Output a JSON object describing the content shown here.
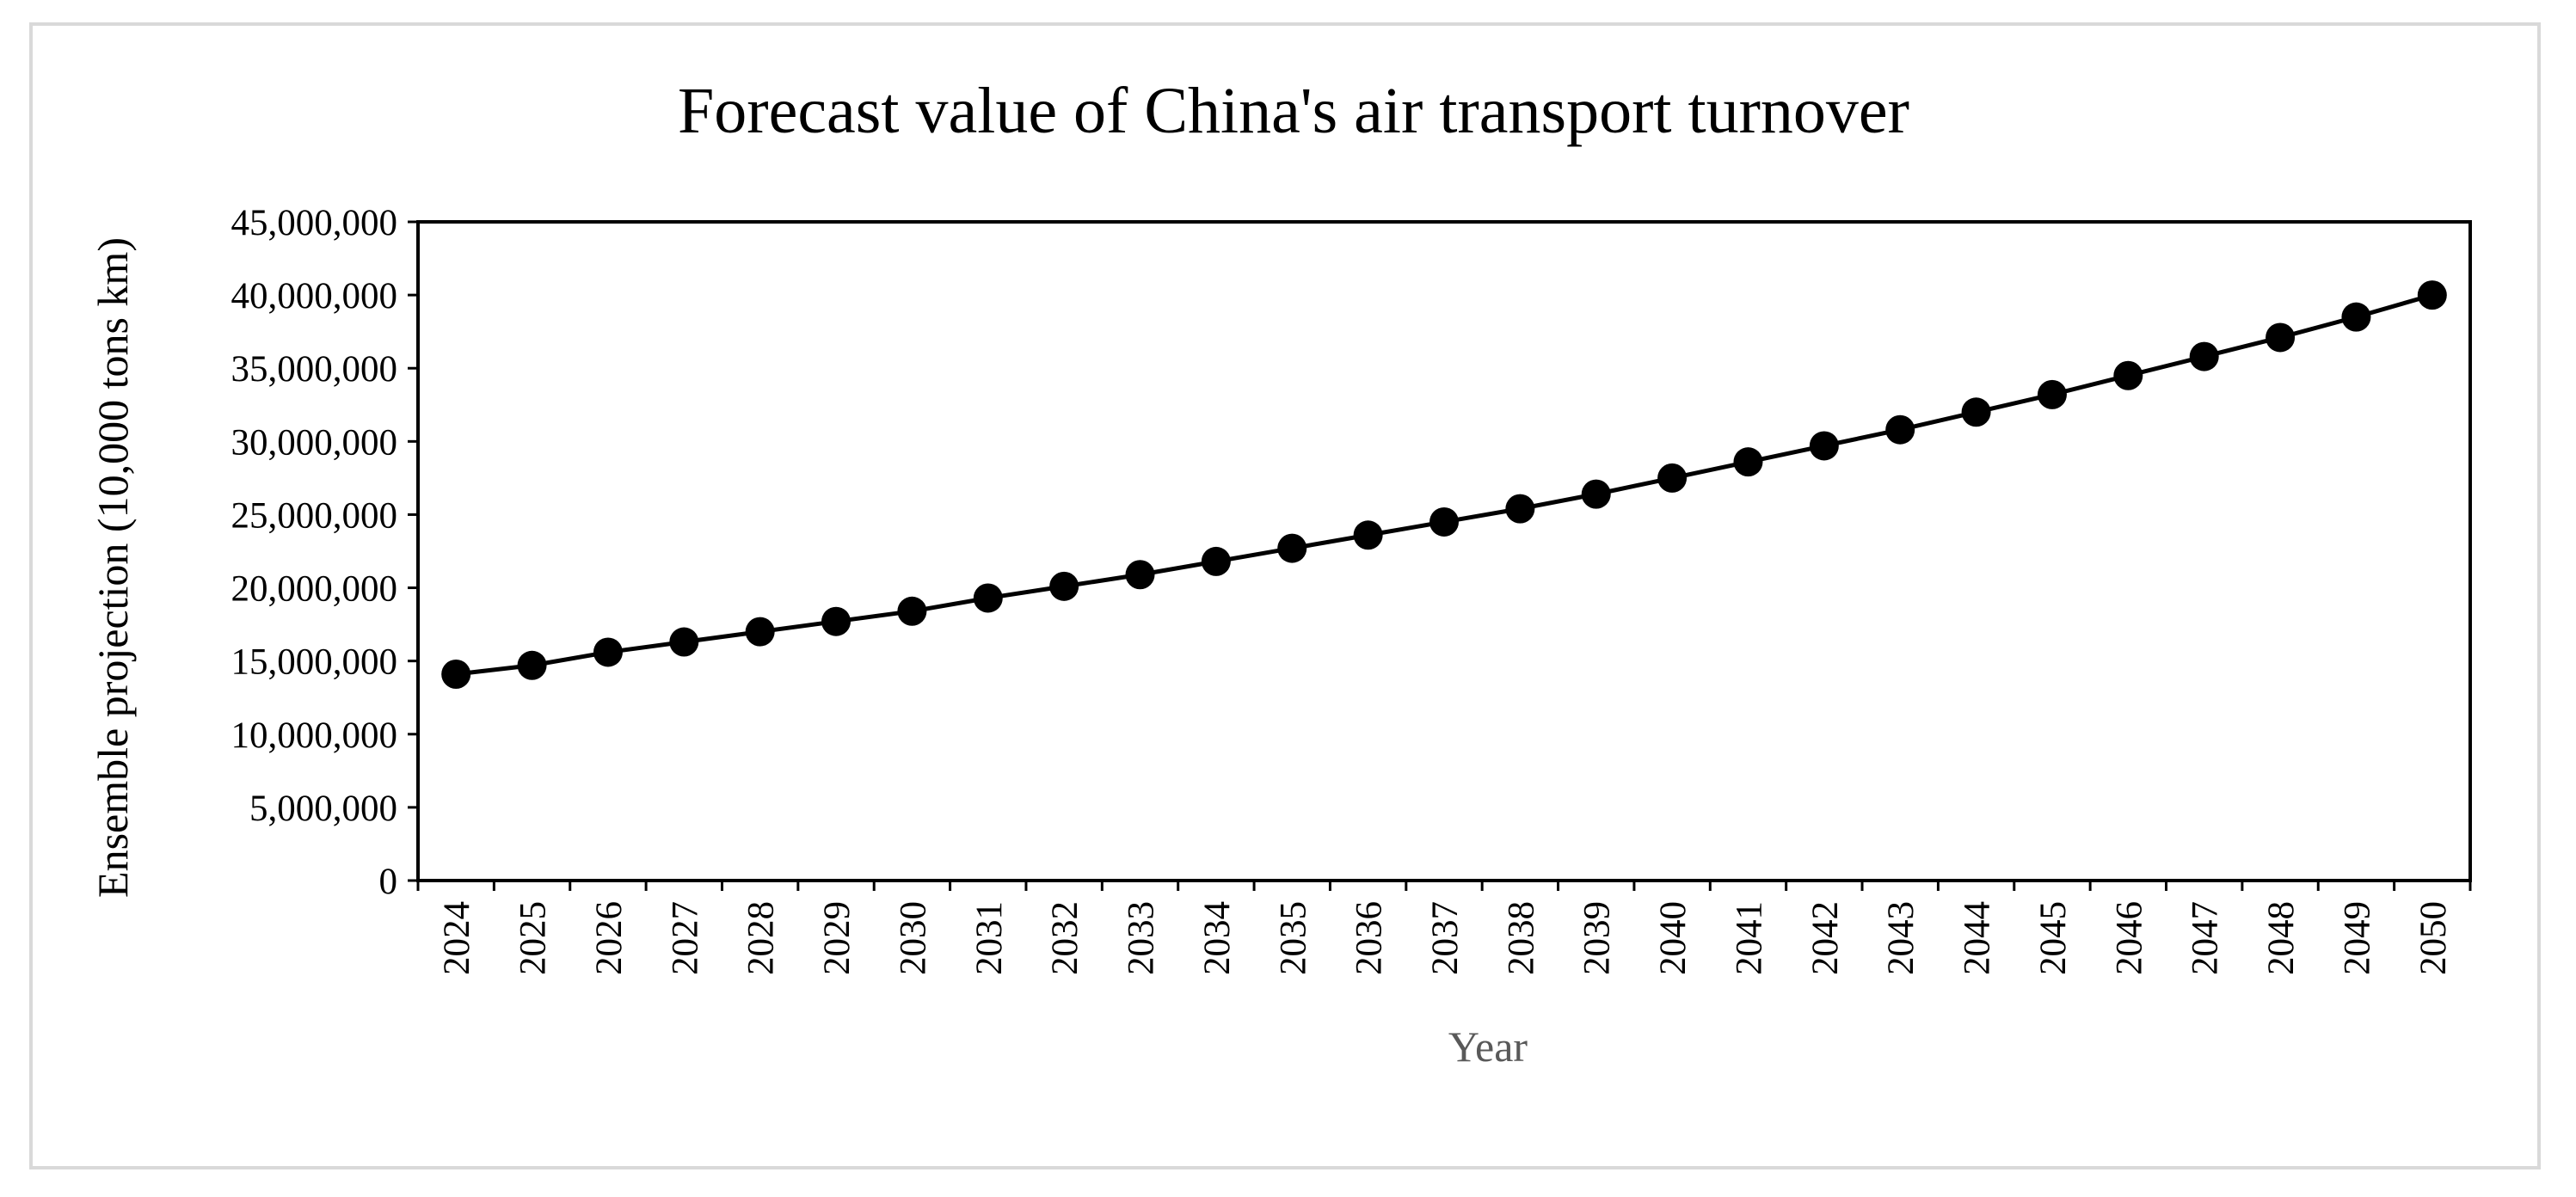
{
  "chart_data": {
    "type": "line",
    "title": "Forecast value of China's air transport turnover",
    "xlabel": "Year",
    "ylabel": "Ensemble projection (10,000 tons km)",
    "categories": [
      "2024",
      "2025",
      "2026",
      "2027",
      "2028",
      "2029",
      "2030",
      "2031",
      "2032",
      "2033",
      "2034",
      "2035",
      "2036",
      "2037",
      "2038",
      "2039",
      "2040",
      "2041",
      "2042",
      "2043",
      "2044",
      "2045",
      "2046",
      "2047",
      "2048",
      "2049",
      "2050"
    ],
    "series": [
      {
        "values": [
          14100000,
          14700000,
          15600000,
          16300000,
          17000000,
          17700000,
          18400000,
          19300000,
          20100000,
          20900000,
          21800000,
          22700000,
          23600000,
          24500000,
          25400000,
          26400000,
          27500000,
          28600000,
          29700000,
          30800000,
          32000000,
          33200000,
          34500000,
          35800000,
          37100000,
          38500000,
          40000000
        ],
        "color": "#000000",
        "marker": "circle"
      }
    ],
    "ylim": [
      0,
      45000000
    ],
    "yticks": [
      "0",
      "5,000,000",
      "10,000,000",
      "15,000,000",
      "20,000,000",
      "25,000,000",
      "30,000,000",
      "35,000,000",
      "40,000,000",
      "45,000,000"
    ],
    "grid": false,
    "legend": "none"
  }
}
